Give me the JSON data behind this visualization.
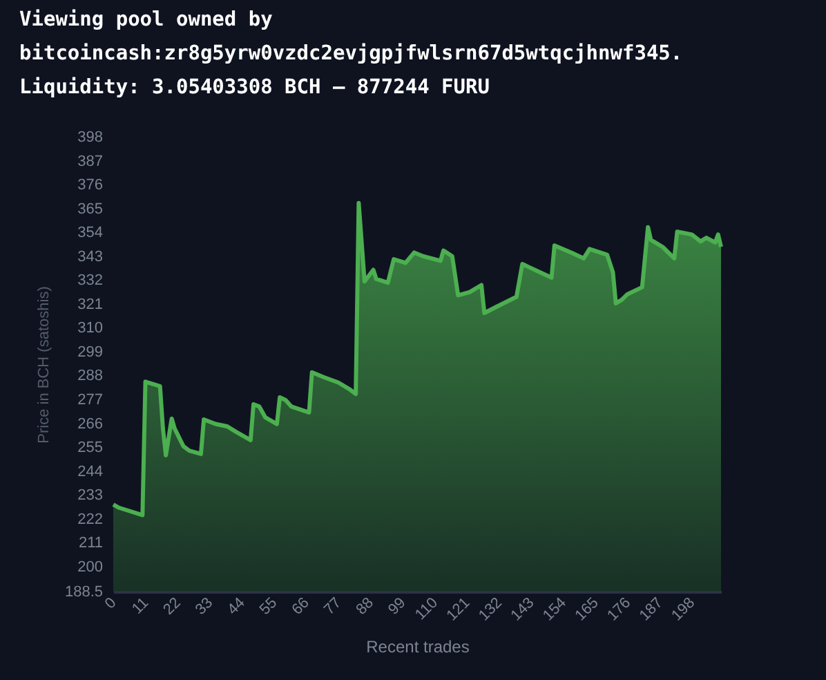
{
  "chart_data": {
    "type": "area",
    "title": [
      "Viewing pool owned by",
      "bitcoincash:zr8g5yrw0vzdc2evjgpjfwlsrn67d5wtqcjhnwf345.",
      "Liquidity: 3.05403308 BCH — 877244 FURU"
    ],
    "xlabel": "Recent trades",
    "ylabel": "Price in BCH (satoshis)",
    "x": [
      0,
      2,
      10,
      11,
      16,
      17,
      18,
      20,
      21,
      24,
      26,
      30,
      31,
      35,
      39,
      42,
      47,
      48,
      50,
      52,
      56,
      57,
      59,
      61,
      67,
      68,
      72,
      77,
      81,
      83,
      84,
      86,
      89,
      90,
      94,
      96,
      100,
      103,
      106,
      112,
      113,
      116,
      118,
      122,
      126,
      127,
      131,
      138,
      140,
      150,
      151,
      157,
      161,
      163,
      169,
      171,
      172,
      174,
      176,
      181,
      183,
      184,
      188,
      192,
      193,
      198,
      201,
      203,
      206,
      207,
      208
    ],
    "series": [
      {
        "color": "#4caf50",
        "values": [
          228.6,
          227.1,
          223.7,
          285.2,
          283.1,
          263.6,
          251.3,
          268.2,
          263.6,
          255.5,
          253.4,
          251.9,
          267.8,
          265.7,
          264.6,
          262.1,
          258.3,
          274.8,
          273.7,
          268.8,
          265.7,
          278,
          276.7,
          273.7,
          271,
          289.5,
          287.3,
          284.8,
          281.6,
          279.5,
          367.5,
          331.4,
          336.7,
          332.5,
          330.8,
          341.6,
          339.9,
          344.7,
          343,
          340.9,
          345.6,
          343,
          325,
          326.5,
          329.7,
          316.8,
          319.6,
          324.3,
          339.4,
          333.1,
          347.9,
          344.5,
          342,
          346.3,
          343.7,
          335.6,
          321.3,
          322.9,
          325.5,
          328.7,
          356.4,
          350.5,
          347.3,
          342,
          354.3,
          353,
          349.8,
          351.5,
          349.3,
          353,
          347.3
        ]
      }
    ],
    "xlim": [
      0,
      208
    ],
    "xticks": [
      0,
      11,
      22,
      33,
      44,
      55,
      66,
      77,
      88,
      99,
      110,
      121,
      132,
      143,
      154,
      165,
      176,
      187,
      198
    ],
    "ylim": [
      188.5,
      398
    ],
    "yticks": [
      188.5,
      200,
      211,
      222,
      233,
      244,
      255,
      266,
      277,
      288,
      299,
      310,
      321,
      332,
      343,
      354,
      365,
      376,
      387,
      398
    ]
  }
}
